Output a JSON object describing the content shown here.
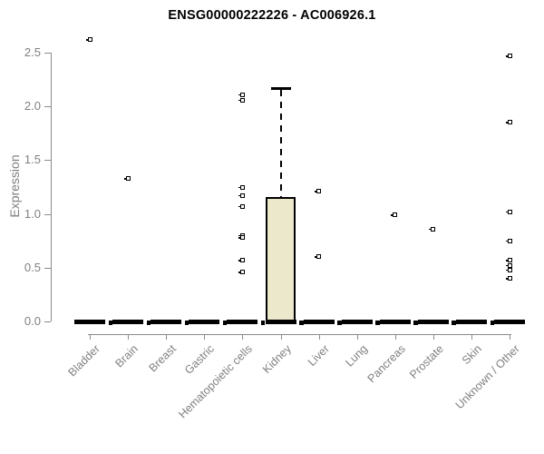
{
  "chart_data": {
    "type": "boxplot",
    "title": "ENSG00000222226 - AC006926.1",
    "ylabel": "Expression",
    "xlabel": "",
    "ylim": [
      0,
      2.5
    ],
    "yticks": [
      0.0,
      0.5,
      1.0,
      1.5,
      2.0,
      2.5
    ],
    "grid": false,
    "legend": false,
    "categories": [
      "Bladder",
      "Brain",
      "Breast",
      "Gastric",
      "Hematopoietic cells",
      "Kidney",
      "Liver",
      "Lung",
      "Pancreas",
      "Prostate",
      "Skin",
      "Unknown / Other"
    ],
    "boxes": [
      {
        "category": "Bladder",
        "median": 0,
        "q1": 0,
        "q3": 0,
        "whisker_low": 0,
        "whisker_high": 0,
        "outliers": [
          2.62
        ]
      },
      {
        "category": "Brain",
        "median": 0,
        "q1": 0,
        "q3": 0,
        "whisker_low": 0,
        "whisker_high": 0,
        "outliers": [
          1.33
        ]
      },
      {
        "category": "Breast",
        "median": 0,
        "q1": 0,
        "q3": 0,
        "whisker_low": 0,
        "whisker_high": 0,
        "outliers": []
      },
      {
        "category": "Gastric",
        "median": 0,
        "q1": 0,
        "q3": 0,
        "whisker_low": 0,
        "whisker_high": 0,
        "outliers": []
      },
      {
        "category": "Hematopoietic cells",
        "median": 0,
        "q1": 0,
        "q3": 0,
        "whisker_low": 0,
        "whisker_high": 0,
        "outliers": [
          2.11,
          2.06,
          1.25,
          1.17,
          1.07,
          0.8,
          0.78,
          0.57,
          0.46
        ]
      },
      {
        "category": "Kidney",
        "median": 0,
        "q1": 0,
        "q3": 1.16,
        "whisker_low": 0,
        "whisker_high": 2.17,
        "outliers": []
      },
      {
        "category": "Liver",
        "median": 0,
        "q1": 0,
        "q3": 0,
        "whisker_low": 0,
        "whisker_high": 0,
        "outliers": [
          1.21,
          0.6
        ]
      },
      {
        "category": "Lung",
        "median": 0,
        "q1": 0,
        "q3": 0,
        "whisker_low": 0,
        "whisker_high": 0,
        "outliers": []
      },
      {
        "category": "Pancreas",
        "median": 0,
        "q1": 0,
        "q3": 0,
        "whisker_low": 0,
        "whisker_high": 0,
        "outliers": [
          0.99
        ]
      },
      {
        "category": "Prostate",
        "median": 0,
        "q1": 0,
        "q3": 0,
        "whisker_low": 0,
        "whisker_high": 0,
        "outliers": [
          0.86
        ]
      },
      {
        "category": "Skin",
        "median": 0,
        "q1": 0,
        "q3": 0,
        "whisker_low": 0,
        "whisker_high": 0,
        "outliers": []
      },
      {
        "category": "Unknown / Other",
        "median": 0,
        "q1": 0,
        "q3": 0,
        "whisker_low": 0,
        "whisker_high": 0,
        "outliers": [
          2.47,
          1.85,
          1.02,
          0.75,
          0.57,
          0.52,
          0.48,
          0.4
        ]
      }
    ],
    "colors": {
      "background": "#ffffff",
      "title": "#000000",
      "axis": "#8c8c8c",
      "tick_label": "#808080",
      "box_fill": "#ece8cb",
      "box_border": "#000000",
      "median": "#000000",
      "outlier": "#000000"
    }
  }
}
